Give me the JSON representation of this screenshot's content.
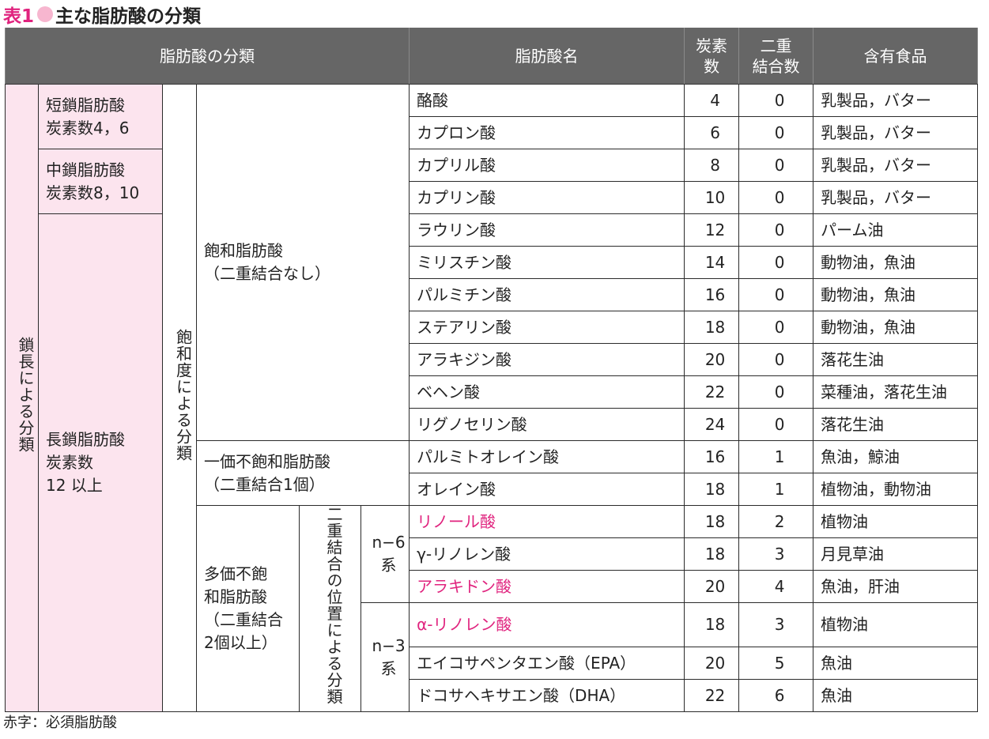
{
  "title": {
    "label": "表1",
    "text": "主な脂肪酸の分類"
  },
  "colors": {
    "accent": "#e0237e",
    "pink_bg": "#fce4ee",
    "header_bg": "#666666"
  },
  "headers": {
    "classification": "脂肪酸の分類",
    "name": "脂肪酸名",
    "carbon": [
      "炭素",
      "数"
    ],
    "double": [
      "二重",
      "結合数"
    ],
    "food": "含有食品"
  },
  "groups": {
    "chain": "鎖長による分類",
    "short": [
      "短鎖脂肪酸",
      "炭素数4，6"
    ],
    "medium": [
      "中鎖脂肪酸",
      "炭素数8，10"
    ],
    "long": [
      "長鎖脂肪酸",
      "炭素数",
      "12 以上"
    ],
    "saturation": "飽和度による分類",
    "saturated": [
      "飽和脂肪酸",
      "（二重結合なし）"
    ],
    "mono": [
      "一価不飽和脂肪酸",
      "（二重結合1個）"
    ],
    "poly": [
      "多価不飽",
      "和脂肪酸",
      "（二重結合",
      "2個以上）"
    ],
    "position": [
      "二重結合の位置によ",
      "る分類"
    ],
    "n6": [
      "n−6",
      "系"
    ],
    "n3": [
      "n−3",
      "系"
    ]
  },
  "rows": [
    {
      "name": "酪酸",
      "carbon": "4",
      "double": "0",
      "food": "乳製品，バター"
    },
    {
      "name": "カプロン酸",
      "carbon": "6",
      "double": "0",
      "food": "乳製品，バター"
    },
    {
      "name": "カプリル酸",
      "carbon": "8",
      "double": "0",
      "food": "乳製品，バター"
    },
    {
      "name": "カプリン酸",
      "carbon": "10",
      "double": "0",
      "food": "乳製品，バター"
    },
    {
      "name": "ラウリン酸",
      "carbon": "12",
      "double": "0",
      "food": "パーム油"
    },
    {
      "name": "ミリスチン酸",
      "carbon": "14",
      "double": "0",
      "food": "動物油，魚油"
    },
    {
      "name": "パルミチン酸",
      "carbon": "16",
      "double": "0",
      "food": "動物油，魚油"
    },
    {
      "name": "ステアリン酸",
      "carbon": "18",
      "double": "0",
      "food": "動物油，魚油"
    },
    {
      "name": "アラキジン酸",
      "carbon": "20",
      "double": "0",
      "food": "落花生油"
    },
    {
      "name": "ベヘン酸",
      "carbon": "22",
      "double": "0",
      "food": "菜種油，落花生油"
    },
    {
      "name": "リグノセリン酸",
      "carbon": "24",
      "double": "0",
      "food": "落花生油"
    },
    {
      "name": "パルミトオレイン酸",
      "carbon": "16",
      "double": "1",
      "food": "魚油，鯨油"
    },
    {
      "name": "オレイン酸",
      "carbon": "18",
      "double": "1",
      "food": "植物油，動物油"
    },
    {
      "name": "リノール酸",
      "carbon": "18",
      "double": "2",
      "food": "植物油",
      "essential": true
    },
    {
      "name": "γ‐リノレン酸",
      "carbon": "18",
      "double": "3",
      "food": "月見草油"
    },
    {
      "name": "アラキドン酸",
      "carbon": "20",
      "double": "4",
      "food": "魚油，肝油",
      "essential": true
    },
    {
      "name": "α‐リノレン酸",
      "carbon": "18",
      "double": "3",
      "food": "植物油",
      "essential": true
    },
    {
      "name": "エイコサペンタエン酸（EPA）",
      "carbon": "20",
      "double": "5",
      "food": "魚油"
    },
    {
      "name": "ドコサヘキサエン酸（DHA）",
      "carbon": "22",
      "double": "6",
      "food": "魚油"
    }
  ],
  "note": "赤字：必須脂肪酸"
}
